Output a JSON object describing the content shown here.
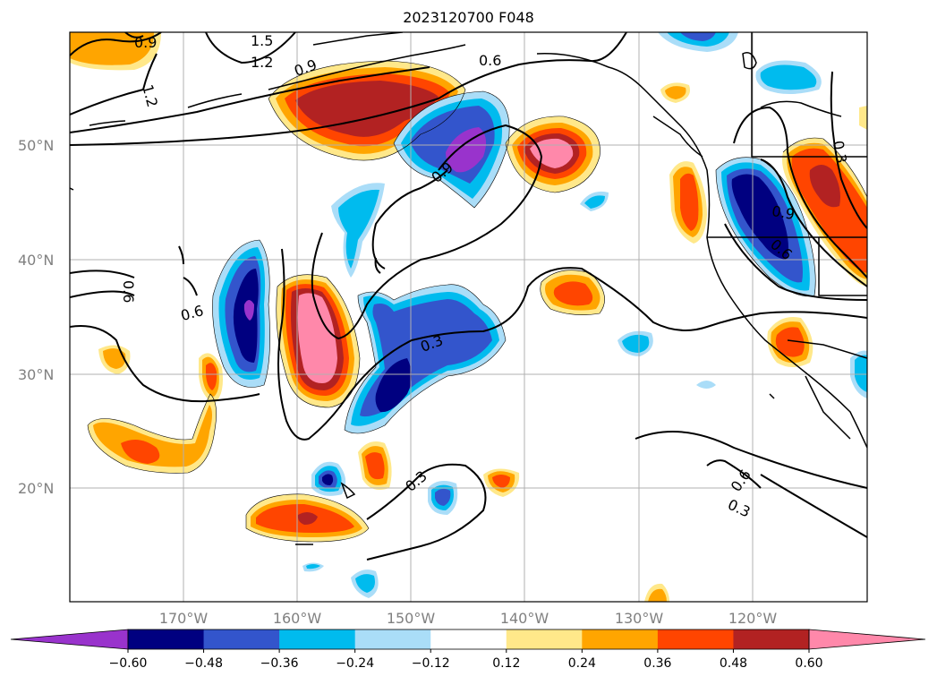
{
  "title": "2023120700 F048",
  "lat_labels": [
    "50°N",
    "40°N",
    "30°N",
    "20°N"
  ],
  "lon_labels": [
    "170°W",
    "160°W",
    "150°W",
    "140°W",
    "130°W",
    "120°W"
  ],
  "colorbar": {
    "ticks": [
      "−0.60",
      "−0.48",
      "−0.36",
      "−0.24",
      "−0.12",
      "0.12",
      "0.24",
      "0.36",
      "0.48",
      "0.60"
    ],
    "colors": [
      "#9933cc",
      "#000080",
      "#3355cc",
      "#00bbee",
      "#aaddf8",
      "#ffffff",
      "#ffe88a",
      "#ffa500",
      "#ff4500",
      "#b22222",
      "#ff88aa"
    ]
  },
  "contour_labels": [
    "0.9",
    "1.5",
    "1.2",
    "1.2",
    "0.9",
    "0.6",
    "0.9",
    "0.6",
    "0.6",
    "0.3",
    "0.3",
    "0.6",
    "0.3",
    "0.9",
    "0.6",
    "0.3"
  ]
}
